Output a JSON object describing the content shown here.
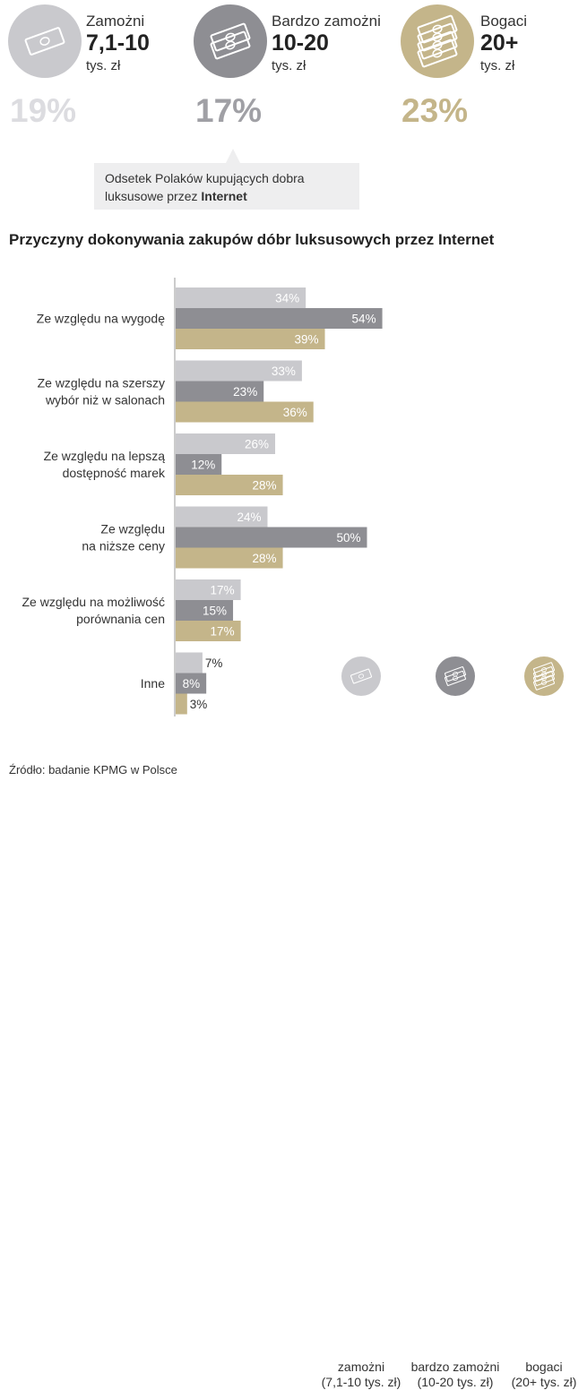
{
  "groups": [
    {
      "label": "Zamożni",
      "range": "7,1-10",
      "unit": "tys. zł",
      "percent": "19%",
      "color": "#c9c9cd",
      "icon": "money-stack-small-icon"
    },
    {
      "label": "Bardzo zamożni",
      "range": "10-20",
      "unit": "tys. zł",
      "percent": "17%",
      "color": "#8e8e93",
      "icon": "money-stack-medium-icon"
    },
    {
      "label": "Bogaci",
      "range": "20+",
      "unit": "tys. zł",
      "percent": "23%",
      "color": "#c4b58a",
      "icon": "money-stack-large-icon"
    }
  ],
  "percent_colors": [
    "#dcdce0",
    "#a0a0a5",
    "#c4b58a"
  ],
  "callout": {
    "text_before": "Odsetek Polaków kupujących dobra luksusowe przez ",
    "text_bold": "Internet"
  },
  "chart_data": {
    "type": "bar",
    "orientation": "horizontal",
    "title": "Przyczyny dokonywania zakupów dóbr luksusowych przez Internet",
    "categories": [
      [
        "Ze względu na wygodę"
      ],
      [
        "Ze względu na szerszy",
        "wybór niż w salonach"
      ],
      [
        "Ze względu na lepszą",
        "dostępność marek"
      ],
      [
        "Ze względu",
        "na niższe ceny"
      ],
      [
        "Ze względu na możliwość",
        "porównania cen"
      ],
      [
        "Inne"
      ]
    ],
    "series": [
      {
        "name": "zamożni",
        "values": [
          34,
          33,
          26,
          24,
          17,
          7
        ],
        "color": "#c9c9cd"
      },
      {
        "name": "bardzo zamożni",
        "values": [
          54,
          23,
          12,
          50,
          15,
          8
        ],
        "color": "#8e8e93"
      },
      {
        "name": "bogaci",
        "values": [
          39,
          36,
          28,
          28,
          17,
          3
        ],
        "color": "#c4b58a"
      }
    ],
    "value_suffix": "%",
    "xlim": [
      0,
      100
    ],
    "grid": false,
    "legend": "bottom-right"
  },
  "legend": [
    {
      "line1": "zamożni",
      "line2": "(7,1-10 tys. zł)",
      "color": "#c9c9cd",
      "icon": "money-stack-small-icon"
    },
    {
      "line1": "bardzo zamożni",
      "line2": "(10-20 tys. zł)",
      "color": "#8e8e93",
      "icon": "money-stack-medium-icon"
    },
    {
      "line1": "bogaci",
      "line2": "(20+ tys. zł)",
      "color": "#c4b58a",
      "icon": "money-stack-large-icon"
    }
  ],
  "source": "Źródło: badanie KPMG w Polsce"
}
